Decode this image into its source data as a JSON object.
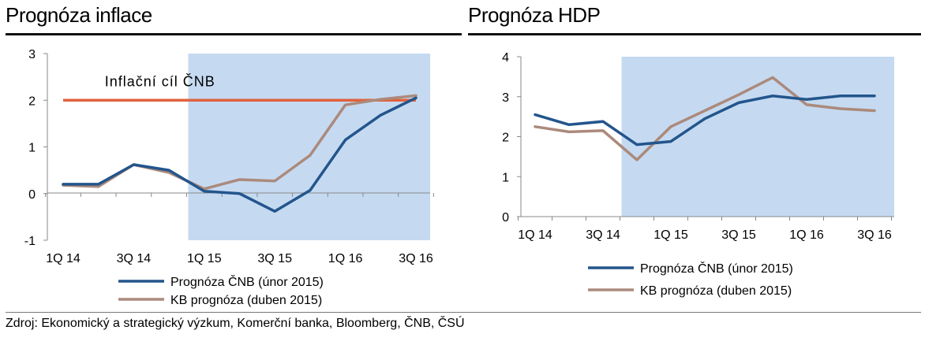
{
  "left_title": "Prognóza inflace",
  "right_title": "Prognóza HDP",
  "source": "Zdroj: Ekonomický a strategický výzkum, Komerční banka, Bloomberg, ČNB, ČSÚ",
  "colors": {
    "cnb": "#23558c",
    "kb": "#ab8a7c",
    "target": "#e0623e",
    "shade": "#c5daf1"
  },
  "chart_data": [
    {
      "type": "line",
      "title": "Prognóza inflace",
      "x": [
        "1Q 14",
        "2Q 14",
        "3Q 14",
        "4Q 14",
        "1Q 15",
        "2Q 15",
        "3Q 15",
        "4Q 15",
        "1Q 16",
        "2Q 16",
        "3Q 16"
      ],
      "x_tick_labels": [
        "1Q 14",
        "3Q 14",
        "1Q 15",
        "3Q 15",
        "1Q 16",
        "3Q 16"
      ],
      "ylim": [
        -1,
        3
      ],
      "y_ticks": [
        "-1",
        "0",
        "1",
        "2",
        "3"
      ],
      "forecast_region_start": "1Q 15",
      "series": [
        {
          "name": "Prognóza ČNB (únor 2015)",
          "values": [
            0.2,
            0.2,
            0.62,
            0.5,
            0.05,
            0.0,
            -0.38,
            0.07,
            1.15,
            1.68,
            2.05
          ]
        },
        {
          "name": "KB prognóza (duben 2015)",
          "values": [
            0.18,
            0.15,
            0.62,
            0.45,
            0.1,
            0.3,
            0.27,
            0.82,
            1.9,
            2.02,
            2.1
          ]
        }
      ],
      "annotation": {
        "text": "Inflační cíl ČNB",
        "value": 2
      }
    },
    {
      "type": "line",
      "title": "Prognóza HDP",
      "x": [
        "1Q 14",
        "2Q 14",
        "3Q 14",
        "4Q 14",
        "1Q 15",
        "2Q 15",
        "3Q 15",
        "4Q 15",
        "1Q 16",
        "2Q 16",
        "3Q 16"
      ],
      "x_tick_labels": [
        "1Q 14",
        "3Q 14",
        "1Q 15",
        "3Q 15",
        "1Q 16",
        "3Q 16"
      ],
      "ylim": [
        0,
        4
      ],
      "y_ticks": [
        "0",
        "1",
        "2",
        "3",
        "4"
      ],
      "forecast_region_start": "4Q 14",
      "series": [
        {
          "name": "Prognóza ČNB (únor 2015)",
          "values": [
            2.55,
            2.3,
            2.38,
            1.8,
            1.88,
            2.45,
            2.85,
            3.02,
            2.93,
            3.02,
            3.02
          ]
        },
        {
          "name": "KB prognóza (duben 2015)",
          "values": [
            2.25,
            2.12,
            2.15,
            1.42,
            2.25,
            2.65,
            3.05,
            3.48,
            2.8,
            2.7,
            2.65
          ]
        }
      ]
    }
  ]
}
